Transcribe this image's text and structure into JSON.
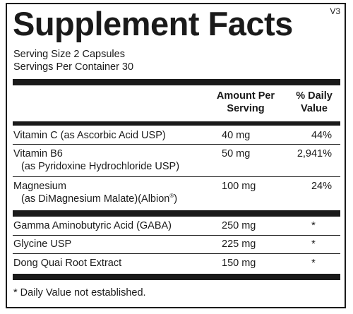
{
  "version": "V3",
  "title": "Supplement Facts",
  "serving_size": "Serving Size 2 Capsules",
  "servings_per_container": "Servings Per Container 30",
  "header": {
    "amount_line1": "Amount Per",
    "amount_line2": "Serving",
    "dv_line1": "% Daily",
    "dv_line2": "Value"
  },
  "group1": [
    {
      "name": "Vitamin C (as Ascorbic Acid USP)",
      "sub": "",
      "amount": "40 mg",
      "dv": "44%"
    },
    {
      "name": "Vitamin B6",
      "sub": "(as Pyridoxine Hydrochloride USP)",
      "amount": "50 mg",
      "dv": "2,941%"
    },
    {
      "name": "Magnesium",
      "sub": "(as DiMagnesium Malate)(Albion",
      "sub_sup": "®",
      "sub_end": ")",
      "amount": "100 mg",
      "dv": "24%"
    }
  ],
  "group2": [
    {
      "name": "Gamma Aminobutyric Acid (GABA)",
      "amount": "250 mg",
      "dv": "*"
    },
    {
      "name": "Glycine USP",
      "amount": "225 mg",
      "dv": "*"
    },
    {
      "name": "Dong Quai Root Extract",
      "amount": "150 mg",
      "dv": "*"
    }
  ],
  "footnote": "* Daily Value not established."
}
